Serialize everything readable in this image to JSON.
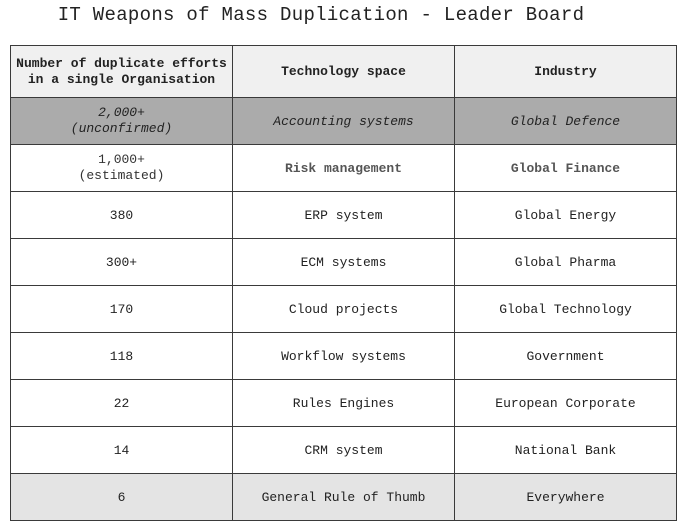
{
  "title": "IT Weapons of Mass Duplication - Leader Board",
  "table": {
    "headers": {
      "efforts_line1": "Number of duplicate efforts",
      "efforts_line2": "in a single Organisation",
      "tech": "Technology space",
      "industry": "Industry"
    },
    "rows": [
      {
        "count": "2,000+",
        "note": "(unconfirmed)",
        "tech": "Accounting systems",
        "industry": "Global Defence"
      },
      {
        "count": "1,000+",
        "note": "(estimated)",
        "tech": "Risk management",
        "industry": "Global Finance"
      },
      {
        "count": "380",
        "tech": "ERP system",
        "industry": "Global Energy"
      },
      {
        "count": "300+",
        "tech": "ECM systems",
        "industry": "Global Pharma"
      },
      {
        "count": "170",
        "tech": "Cloud projects",
        "industry": "Global Technology"
      },
      {
        "count": "118",
        "tech": "Workflow systems",
        "industry": "Government"
      },
      {
        "count": "22",
        "tech": "Rules Engines",
        "industry": "European Corporate"
      },
      {
        "count": "14",
        "tech": "CRM system",
        "industry": "National Bank"
      },
      {
        "count": "6",
        "tech": "General Rule of Thumb",
        "industry": "Everywhere"
      }
    ]
  }
}
